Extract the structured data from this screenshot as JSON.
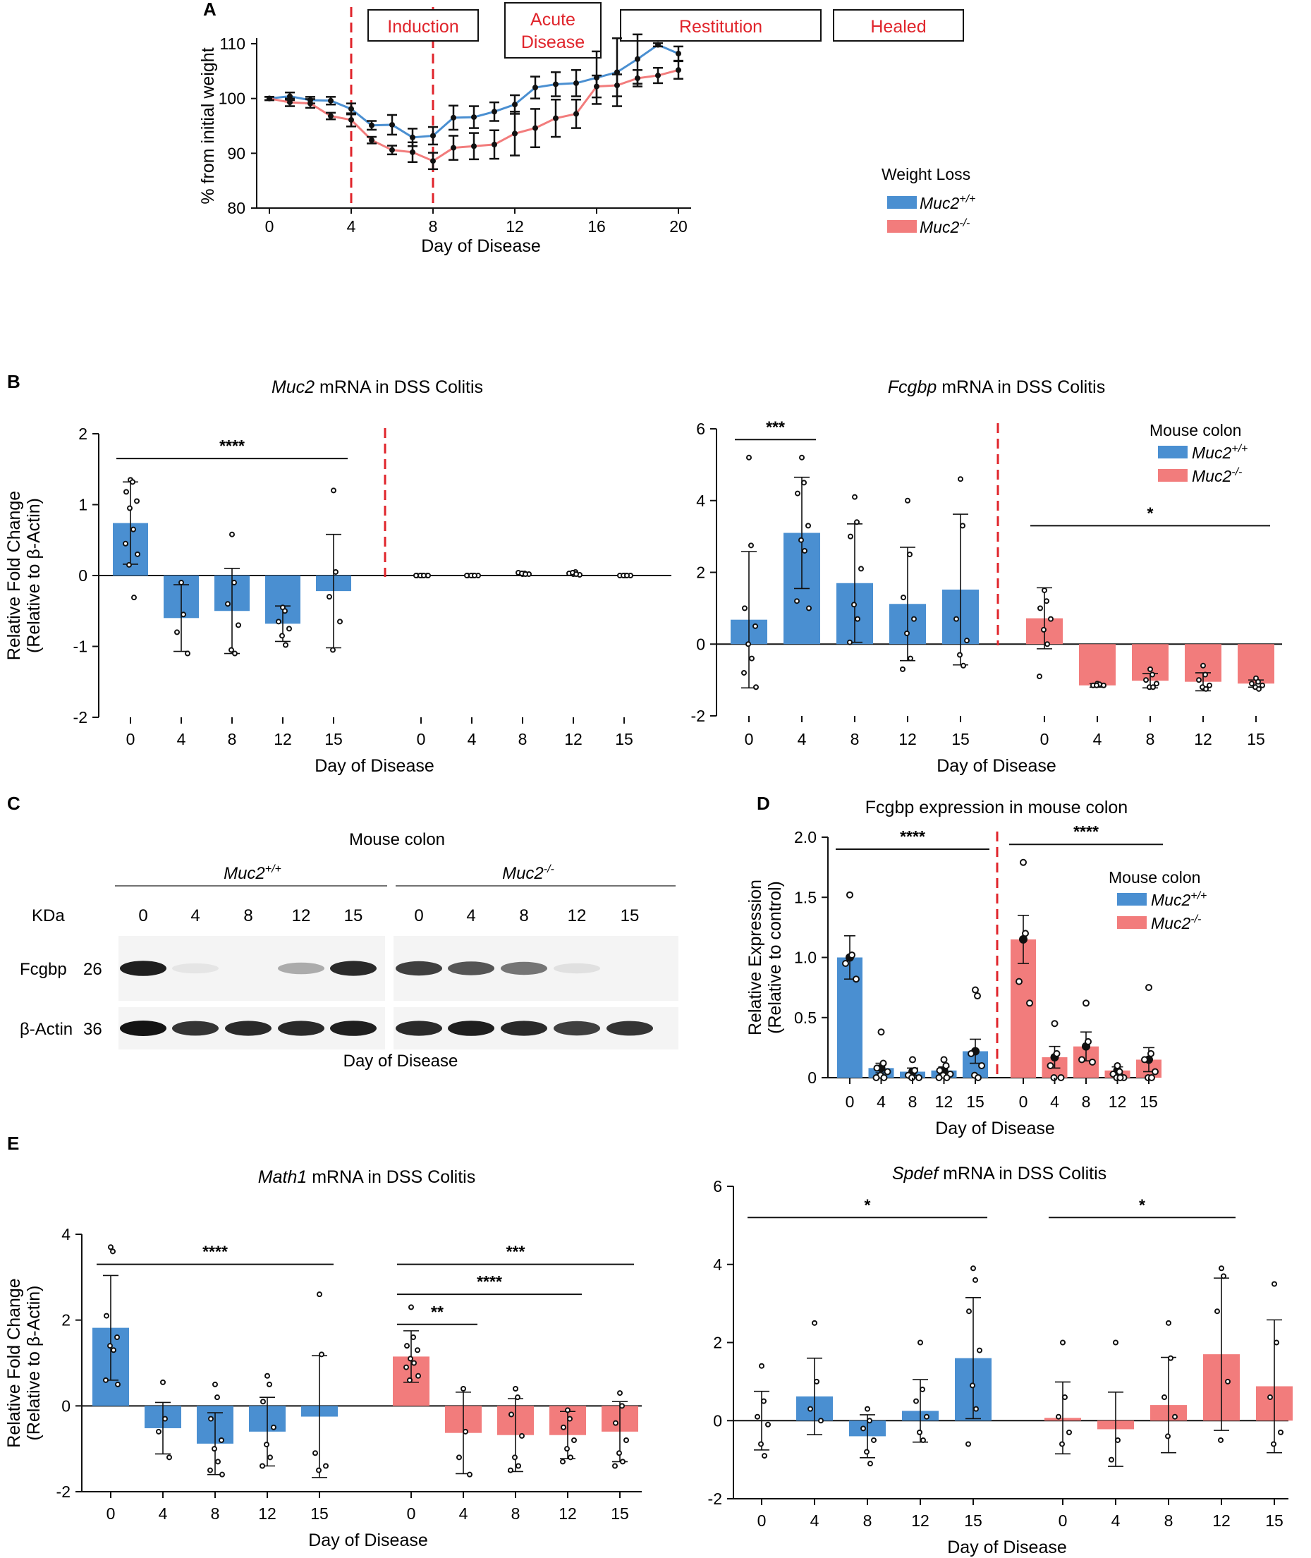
{
  "colors": {
    "wt": "#4a8fd1",
    "ko": "#f27c7c",
    "dashed": "#e0242b",
    "error": "#111111"
  },
  "chart_data": [
    {
      "id": "A",
      "panel": "A",
      "type": "line",
      "title": "",
      "xlabel": "Day of Disease",
      "ylabel": "% from initial weight",
      "xlim": [
        0,
        20
      ],
      "ylim": [
        80,
        110
      ],
      "xticks": [
        "0",
        "4",
        "8",
        "12",
        "16",
        "20"
      ],
      "yticks": [
        "80",
        "90",
        "100",
        "110"
      ],
      "phases": [
        "Induction",
        "Acute Disease",
        "Restitution",
        "Healed"
      ],
      "dividers": [
        4,
        8
      ],
      "legend_title": "Weight Loss",
      "legend": [
        "Muc2+/+",
        "Muc2-/-"
      ],
      "x": [
        0,
        1,
        2,
        3,
        4,
        5,
        6,
        7,
        8,
        9,
        10,
        11,
        12,
        13,
        14,
        15,
        16,
        17,
        18,
        19,
        20
      ],
      "series": [
        {
          "name": "Muc2+/+",
          "values": [
            100,
            100.4,
            99.7,
            99.6,
            98.1,
            95.1,
            95.2,
            92.9,
            93.2,
            96.5,
            96.6,
            97.6,
            98.9,
            102.0,
            102.6,
            102.8,
            103.8,
            104.8,
            107.2,
            109.8,
            108.2
          ],
          "err": [
            0.3,
            0.7,
            0.6,
            0.7,
            1.0,
            0.8,
            1.8,
            1.6,
            1.6,
            2.2,
            2.0,
            1.7,
            1.7,
            2.0,
            2.2,
            2.4,
            4.8,
            6.2,
            4.5,
            0.3,
            1.3
          ]
        },
        {
          "name": "Muc2-/-",
          "values": [
            100,
            99.3,
            99.1,
            96.8,
            96.1,
            92.4,
            90.6,
            90.2,
            88.6,
            91.0,
            91.3,
            91.6,
            93.6,
            94.6,
            96.4,
            97.2,
            102.2,
            102.4,
            103.7,
            104.2,
            105.2
          ],
          "err": [
            0.3,
            0.7,
            0.8,
            0.6,
            1.2,
            0.6,
            0.8,
            1.8,
            1.5,
            2.2,
            2.4,
            2.6,
            4.0,
            3.5,
            3.4,
            2.6,
            2.0,
            2.0,
            1.5,
            1.4,
            1.6
          ]
        }
      ]
    },
    {
      "id": "B1",
      "panel": "B",
      "type": "bar",
      "title_italic": "Muc2",
      "title_rest": " mRNA in DSS Colitis",
      "xlabel": "Day of Disease",
      "ylabel": "Relative Fold Change",
      "ylabel2": "(Relative to β-Actin)",
      "ylim": [
        -2,
        2
      ],
      "yticks": [
        "-2",
        "-1",
        "0",
        "1",
        "2"
      ],
      "groups": [
        {
          "series": "Muc2+/+",
          "categories": [
            "0",
            "4",
            "8",
            "12",
            "15"
          ],
          "values": [
            0.74,
            -0.6,
            -0.5,
            -0.68,
            -0.22
          ],
          "err": [
            0.58,
            0.47,
            0.6,
            0.25,
            0.8
          ],
          "points": [
            [
              1.35,
              1.32,
              1.18,
              1.05,
              0.95,
              0.65,
              0.45,
              0.3,
              0.15,
              -0.31
            ],
            [
              -0.1,
              -0.55,
              -0.8,
              -1.1
            ],
            [
              0.58,
              -0.1,
              -0.4,
              -0.7,
              -1.05,
              -1.1
            ],
            [
              -0.45,
              -0.5,
              -0.65,
              -0.75,
              -0.85,
              -0.98
            ],
            [
              1.2,
              0.05,
              -0.3,
              -0.65,
              -1.05
            ]
          ]
        },
        {
          "series": "Muc2-/-",
          "categories": [
            "0",
            "4",
            "8",
            "12",
            "15"
          ],
          "values": [
            0,
            0,
            0,
            0,
            0
          ],
          "err": [
            0,
            0,
            0,
            0,
            0
          ],
          "points": [
            [
              0.0,
              0.0,
              0.0,
              0.0,
              0.0,
              0.0,
              0.0,
              0.0
            ],
            [
              0.0,
              0.0,
              0.0,
              0.0,
              0.0,
              0.0,
              0.0
            ],
            [
              0.02,
              0.03,
              0.04,
              0.02,
              0.03,
              0.02
            ],
            [
              0.02,
              0.05,
              0.03,
              0.01,
              0.04,
              0.02
            ],
            [
              0.0,
              0.0,
              0.0,
              0.0,
              0.0,
              0.0
            ]
          ]
        }
      ],
      "significance": [
        {
          "label": "****",
          "group": 0,
          "from": 0,
          "to": 4,
          "y": 1.65
        }
      ]
    },
    {
      "id": "B2",
      "panel": "",
      "type": "bar",
      "title_italic": "Fcgbp",
      "title_rest": " mRNA in DSS Colitis",
      "xlabel": "Day of Disease",
      "ylabel": "",
      "ylabel2": "",
      "ylim": [
        -2,
        6
      ],
      "yticks": [
        "-2",
        "0",
        "2",
        "4",
        "6"
      ],
      "legend_title": "Mouse colon",
      "legend": [
        "Muc2+/+",
        "Muc2-/-"
      ],
      "groups": [
        {
          "series": "Muc2+/+",
          "categories": [
            "0",
            "4",
            "8",
            "12",
            "15"
          ],
          "values": [
            0.68,
            3.1,
            1.7,
            1.12,
            1.52
          ],
          "err": [
            1.9,
            1.55,
            1.65,
            1.58,
            2.1
          ],
          "points": [
            [
              5.2,
              2.75,
              1.0,
              0.5,
              0.0,
              -0.4,
              -0.8,
              -1.2
            ],
            [
              5.2,
              4.5,
              4.2,
              3.3,
              2.9,
              2.6,
              1.2,
              1.0
            ],
            [
              4.1,
              3.4,
              3.0,
              2.1,
              1.1,
              0.7,
              0.05
            ],
            [
              4.0,
              2.5,
              1.3,
              0.7,
              0.3,
              -0.4,
              -0.7
            ],
            [
              4.6,
              3.3,
              0.7,
              0.1,
              -0.3,
              -0.6
            ]
          ]
        },
        {
          "series": "Muc2-/-",
          "categories": [
            "0",
            "4",
            "8",
            "12",
            "15"
          ],
          "values": [
            0.72,
            -1.15,
            -1.02,
            -1.05,
            -1.1
          ],
          "err": [
            0.85,
            0.05,
            0.2,
            0.25,
            0.1
          ],
          "points": [
            [
              1.5,
              1.2,
              1.0,
              0.7,
              0.4,
              0.0,
              -0.9
            ],
            [
              -1.1,
              -1.12,
              -1.15,
              -1.15,
              -1.15
            ],
            [
              -0.7,
              -0.85,
              -1.0,
              -1.1,
              -1.2,
              -1.2
            ],
            [
              -0.6,
              -0.85,
              -1.0,
              -1.15,
              -1.2,
              -1.25
            ],
            [
              -0.95,
              -1.05,
              -1.1,
              -1.15,
              -1.2,
              -1.25
            ]
          ]
        }
      ],
      "significance": [
        {
          "label": "***",
          "group": 0,
          "from": 0,
          "to": 1,
          "y": 5.7
        },
        {
          "label": "*",
          "group": 1,
          "from": 0,
          "to": 4,
          "y": 3.3
        }
      ]
    },
    {
      "id": "D",
      "panel": "D",
      "type": "bar",
      "title_italic": "",
      "title_rest": "Fcgbp expression in mouse colon",
      "xlabel": "Day of Disease",
      "ylabel": "Relative Expression",
      "ylabel2": "(Relative to control)",
      "ylim": [
        0,
        2.0
      ],
      "yticks": [
        "0",
        "0.5",
        "1.0",
        "1.5",
        "2.0"
      ],
      "legend_title": "Mouse colon",
      "legend": [
        "Muc2+/+",
        "Muc2-/-"
      ],
      "groups": [
        {
          "series": "Muc2+/+",
          "categories": [
            "0",
            "4",
            "8",
            "12",
            "15"
          ],
          "values": [
            1.0,
            0.08,
            0.05,
            0.06,
            0.22
          ],
          "err": [
            0.18,
            0.04,
            0.03,
            0.03,
            0.1
          ],
          "points": [
            [
              1.52,
              1.02,
              0.95,
              0.82
            ],
            [
              0.38,
              0.12,
              0.08,
              0.05,
              0.02,
              0.0,
              0.0
            ],
            [
              0.15,
              0.06,
              0.02,
              0.0,
              0.0
            ],
            [
              0.15,
              0.1,
              0.06,
              0.03,
              0.02,
              0.0,
              0.0
            ],
            [
              0.73,
              0.68,
              0.2,
              0.1,
              0.02,
              0.0
            ]
          ]
        },
        {
          "series": "Muc2-/-",
          "categories": [
            "0",
            "4",
            "8",
            "12",
            "15"
          ],
          "values": [
            1.15,
            0.17,
            0.26,
            0.06,
            0.15
          ],
          "err": [
            0.2,
            0.09,
            0.12,
            0.03,
            0.1
          ],
          "points": [
            [
              1.79,
              1.2,
              0.8,
              0.62
            ],
            [
              0.45,
              0.2,
              0.1,
              0.0,
              0.0
            ],
            [
              0.62,
              0.3,
              0.15,
              0.13
            ],
            [
              0.1,
              0.05,
              0.03,
              0.0,
              0.0,
              0.0
            ],
            [
              0.75,
              0.2,
              0.15,
              0.05,
              0.0,
              0.0
            ]
          ]
        }
      ],
      "significance": [
        {
          "label": "****",
          "group": 0,
          "from": 0,
          "to": 4,
          "y": 1.9
        },
        {
          "label": "****",
          "group": 1,
          "from": 0,
          "to": 4,
          "y": 1.94
        }
      ]
    },
    {
      "id": "E1",
      "panel": "E",
      "type": "bar",
      "title_italic": "Math1",
      "title_rest": " mRNA in DSS Colitis",
      "xlabel": "Day of Disease",
      "ylabel": "Relative Fold Change",
      "ylabel2": "(Relative to β-Actin)",
      "ylim": [
        -2,
        4
      ],
      "yticks": [
        "-2",
        "0",
        "2",
        "4"
      ],
      "groups": [
        {
          "series": "Muc2+/+",
          "categories": [
            "0",
            "4",
            "8",
            "12",
            "15"
          ],
          "values": [
            1.82,
            -0.52,
            -0.88,
            -0.6,
            -0.25
          ],
          "err": [
            1.22,
            0.6,
            0.72,
            0.8,
            1.42
          ],
          "points": [
            [
              3.7,
              3.6,
              2.1,
              1.6,
              1.4,
              1.3,
              0.6,
              0.5
            ],
            [
              0.55,
              -0.3,
              -0.6,
              -1.2
            ],
            [
              0.5,
              0.2,
              -0.3,
              -0.8,
              -1.0,
              -1.3,
              -1.5,
              -1.6
            ],
            [
              0.7,
              0.5,
              0.1,
              -0.5,
              -0.9,
              -1.2,
              -1.4
            ],
            [
              2.6,
              1.2,
              -1.1,
              -1.4,
              -1.5
            ]
          ]
        },
        {
          "series": "Muc2-/-",
          "categories": [
            "0",
            "4",
            "8",
            "12",
            "15"
          ],
          "values": [
            1.15,
            -0.63,
            -0.68,
            -0.68,
            -0.6
          ],
          "err": [
            0.6,
            0.95,
            0.85,
            0.55,
            0.7
          ],
          "points": [
            [
              2.3,
              1.6,
              1.4,
              1.3,
              1.1,
              1.0,
              0.9,
              0.7,
              0.6
            ],
            [
              0.4,
              -0.6,
              -1.2,
              -1.6
            ],
            [
              0.4,
              0.2,
              -0.2,
              -0.7,
              -1.2,
              -1.4,
              -1.5
            ],
            [
              -0.1,
              -0.3,
              -0.5,
              -0.8,
              -1.0,
              -1.2,
              -1.3
            ],
            [
              0.3,
              0.0,
              -0.4,
              -0.8,
              -1.1,
              -1.3,
              -1.4
            ]
          ]
        }
      ],
      "significance": [
        {
          "label": "****",
          "group": 0,
          "from": 0,
          "to": 4,
          "y": 3.3
        },
        {
          "label": "***",
          "group": 1,
          "from": 0,
          "to": 4,
          "y": 3.3
        },
        {
          "label": "****",
          "group": 1,
          "from": 0,
          "to": 3,
          "y": 2.6
        },
        {
          "label": "**",
          "group": 1,
          "from": 0,
          "to": 1,
          "y": 1.9
        }
      ]
    },
    {
      "id": "E2",
      "panel": "",
      "type": "bar",
      "title_italic": "Spdef",
      "title_rest": " mRNA in DSS Colitis",
      "xlabel": "Day of Disease",
      "ylabel": "",
      "ylabel2": "",
      "ylim": [
        -2,
        6
      ],
      "yticks": [
        "-2",
        "0",
        "2",
        "4",
        "6"
      ],
      "groups": [
        {
          "series": "Muc2+/+",
          "categories": [
            "0",
            "4",
            "8",
            "12",
            "15"
          ],
          "values": [
            0.0,
            0.62,
            -0.4,
            0.25,
            1.6
          ],
          "err": [
            0.75,
            0.98,
            0.55,
            0.8,
            1.55
          ],
          "points": [
            [
              1.4,
              0.5,
              0.1,
              -0.1,
              -0.6,
              -0.9
            ],
            [
              2.5,
              1.0,
              0.3,
              0.0
            ],
            [
              0.3,
              0.0,
              -0.2,
              -0.5,
              -0.8,
              -1.1
            ],
            [
              2.0,
              0.8,
              0.5,
              0.1,
              -0.3,
              -0.5
            ],
            [
              3.9,
              3.6,
              2.8,
              1.8,
              0.9,
              0.3,
              -0.6
            ]
          ]
        },
        {
          "series": "Muc2-/-",
          "categories": [
            "0",
            "4",
            "8",
            "12",
            "15"
          ],
          "values": [
            0.07,
            -0.22,
            0.4,
            1.7,
            0.88
          ],
          "err": [
            0.92,
            0.95,
            1.22,
            1.95,
            1.7
          ],
          "points": [
            [
              2.0,
              0.6,
              0.1,
              -0.3,
              -0.6
            ],
            [
              2.0,
              -0.5,
              -1.0
            ],
            [
              2.5,
              1.6,
              0.6,
              0.1,
              -0.4
            ],
            [
              3.9,
              3.7,
              2.8,
              1.0,
              -0.5
            ],
            [
              3.5,
              2.0,
              0.6,
              -0.3,
              -0.6
            ]
          ]
        }
      ],
      "significance": [
        {
          "label": "*",
          "group": 0,
          "from": 0,
          "to": 4,
          "y": 5.2
        },
        {
          "label": "*",
          "group": 1,
          "from": 0,
          "to": 3,
          "y": 5.2
        }
      ]
    }
  ],
  "blot": {
    "panel": "C",
    "title": "Mouse colon",
    "kda_label": "KDa",
    "groups": [
      "Muc2+/+",
      "Muc2-/-"
    ],
    "lanes": [
      "0",
      "4",
      "8",
      "12",
      "15",
      "0",
      "4",
      "8",
      "12",
      "15"
    ],
    "rows": [
      {
        "label": "Fcgbp",
        "kda": "26",
        "intensity": [
          0.95,
          0.03,
          0.0,
          0.3,
          0.9,
          0.8,
          0.7,
          0.55,
          0.05,
          0.0
        ]
      },
      {
        "label": "β-Actin",
        "kda": "36",
        "intensity": [
          1.0,
          0.85,
          0.9,
          0.9,
          0.95,
          0.9,
          0.95,
          0.9,
          0.8,
          0.85
        ]
      }
    ],
    "xlabel": "Day of Disease"
  }
}
